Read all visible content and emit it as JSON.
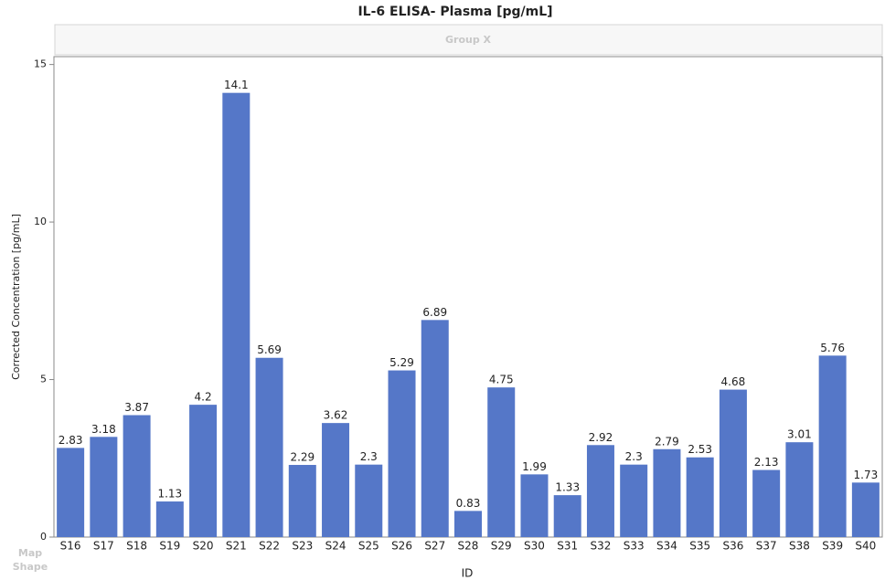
{
  "chart_data": {
    "type": "bar",
    "title": "IL-6 ELISA-  Plasma [pg/mL]",
    "group_label": "Group X",
    "x_label": "ID",
    "y_label": "Corrected Concentration [pg/mL]",
    "categories": [
      "S16",
      "S17",
      "S18",
      "S19",
      "S20",
      "S21",
      "S22",
      "S23",
      "S24",
      "S25",
      "S26",
      "S27",
      "S28",
      "S29",
      "S30",
      "S31",
      "S32",
      "S33",
      "S34",
      "S35",
      "S36",
      "S37",
      "S38",
      "S39",
      "S40"
    ],
    "values": [
      2.83,
      3.18,
      3.87,
      1.13,
      4.2,
      14.1,
      5.69,
      2.29,
      3.62,
      2.3,
      5.29,
      6.89,
      0.83,
      4.75,
      1.99,
      1.33,
      2.92,
      2.3,
      2.79,
      2.53,
      4.68,
      2.13,
      3.01,
      5.76,
      1.73
    ],
    "color": "#5577c8",
    "ylim": [
      0,
      15.25
    ],
    "yticks": [
      0,
      5,
      10,
      15
    ],
    "grid": false
  },
  "ui": {
    "map_shape": [
      "Map",
      "Shape"
    ]
  }
}
